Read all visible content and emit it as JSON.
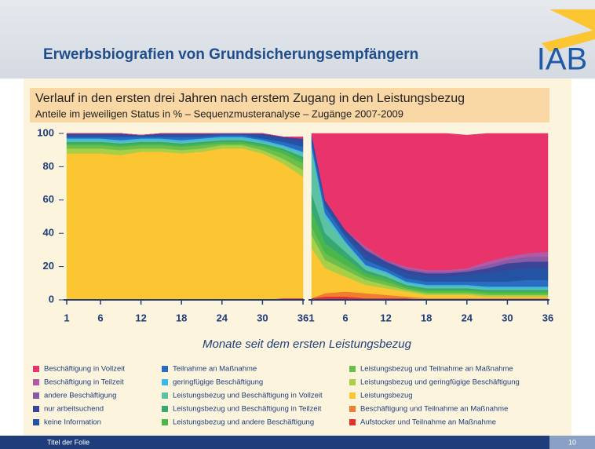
{
  "slide": {
    "title": "Erwerbsbiografien von Grundsicherungsempfängern",
    "logo": "IAB",
    "chart_title": "Verlauf in den ersten drei Jahren nach erstem Zugang in den Leistungsbezug",
    "chart_subtitle": "Anteile im jeweiligen Status in % – Sequenzmusteranalyse – Zugänge 2007-2009",
    "footer": "Titel der Folie",
    "page_number": "10"
  },
  "chart_data": [
    {
      "type": "area",
      "xlabel": "Monate seit dem ersten Leistungsbezug",
      "x": [
        1,
        3,
        6,
        9,
        12,
        15,
        18,
        21,
        24,
        27,
        30,
        33,
        36
      ],
      "xlim": [
        1,
        36
      ],
      "xticks": [
        1,
        6,
        12,
        18,
        24,
        30,
        36
      ],
      "ylim": [
        0,
        100
      ],
      "yticks": [
        0,
        20,
        40,
        60,
        80,
        100
      ],
      "series": [
        {
          "name": "Beschäftigung in Vollzeit",
          "color": "#e8336b",
          "values": [
            0,
            0,
            0,
            0,
            0,
            0,
            0,
            0,
            0,
            0,
            0,
            0,
            1
          ]
        },
        {
          "name": "Beschäftigung in Teilzeit",
          "color": "#b25aa6",
          "values": [
            0,
            0,
            0,
            0,
            0,
            0,
            0,
            0,
            0,
            0,
            0,
            0,
            0
          ]
        },
        {
          "name": "andere Beschäftigung",
          "color": "#8a5aa6",
          "values": [
            0,
            0,
            0,
            0,
            0,
            0,
            0,
            0,
            0,
            0,
            0,
            0,
            0
          ]
        },
        {
          "name": "nur arbeitsuchend",
          "color": "#3b4598",
          "values": [
            1,
            1,
            1,
            1,
            0,
            1,
            1,
            1,
            0,
            0,
            1,
            1,
            2
          ]
        },
        {
          "name": "keine Information",
          "color": "#2453a4",
          "values": [
            1,
            1,
            1,
            1,
            1,
            1,
            1,
            1,
            1,
            1,
            2,
            2,
            3
          ]
        },
        {
          "name": "Teilnahme an Maßnahme",
          "color": "#2a6cc0",
          "values": [
            1,
            1,
            1,
            2,
            1,
            1,
            2,
            1,
            1,
            1,
            1,
            2,
            3
          ]
        },
        {
          "name": "geringfügige Beschäftigung",
          "color": "#3cb9ea",
          "values": [
            1,
            1,
            1,
            1,
            1,
            1,
            1,
            1,
            1,
            1,
            1,
            1,
            1
          ]
        },
        {
          "name": "Leistungsbezug und Beschäftigung in Vollzeit",
          "color": "#5cc2a4",
          "values": [
            1,
            1,
            1,
            1,
            1,
            1,
            1,
            1,
            1,
            1,
            1,
            1,
            2
          ]
        },
        {
          "name": "Leistungsbezug und Beschäftigung in Teilzeit",
          "color": "#38a872",
          "values": [
            1,
            1,
            1,
            1,
            1,
            1,
            1,
            1,
            1,
            1,
            1,
            1,
            2
          ]
        },
        {
          "name": "Leistungsbezug und andere Beschäftigung",
          "color": "#4bb74a",
          "values": [
            1,
            1,
            1,
            1,
            1,
            1,
            1,
            1,
            1,
            1,
            1,
            2,
            2
          ]
        },
        {
          "name": "Leistungsbezug und Teilnahme an Maßnahme",
          "color": "#6cbf4c",
          "values": [
            2,
            2,
            2,
            2,
            2,
            2,
            2,
            2,
            1,
            1,
            2,
            3,
            4
          ]
        },
        {
          "name": "Leistungsbezug und geringfügige Beschäftigung",
          "color": "#a9cf46",
          "values": [
            3,
            3,
            3,
            3,
            2,
            2,
            2,
            2,
            2,
            2,
            2,
            3,
            4
          ]
        },
        {
          "name": "Leistungsbezug",
          "color": "#fbc632",
          "values": [
            88,
            88,
            88,
            87,
            89,
            89,
            88,
            89,
            91,
            91,
            88,
            81,
            73
          ]
        },
        {
          "name": "Beschäftigung und Teilnahme an Maßnahme",
          "color": "#f07d30",
          "values": [
            0,
            0,
            0,
            0,
            0,
            0,
            0,
            0,
            0,
            0,
            0,
            0,
            0
          ]
        },
        {
          "name": "Aufstocker und Teilnahme an Maßnahme",
          "color": "#e8302a",
          "values": [
            0,
            0,
            0,
            0,
            0,
            0,
            0,
            0,
            0,
            0,
            0,
            1,
            1
          ]
        }
      ]
    },
    {
      "type": "area",
      "x": [
        1,
        3,
        6,
        9,
        12,
        15,
        18,
        21,
        24,
        27,
        30,
        33,
        36
      ],
      "xlim": [
        1,
        36
      ],
      "xticks": [
        1,
        6,
        12,
        18,
        24,
        30,
        36
      ],
      "ylim": [
        0,
        100
      ],
      "series": [
        {
          "values": [
            0,
            40,
            58,
            68,
            76,
            80,
            82,
            82,
            80,
            77,
            74,
            72,
            71
          ]
        },
        {
          "values": [
            0,
            0,
            0,
            1,
            0,
            1,
            1,
            1,
            1,
            2,
            2,
            2,
            3
          ]
        },
        {
          "values": [
            0,
            0,
            0,
            1,
            1,
            1,
            1,
            1,
            1,
            2,
            2,
            3,
            3
          ]
        },
        {
          "values": [
            2,
            2,
            2,
            3,
            2,
            2,
            2,
            2,
            2,
            3,
            4,
            4,
            4
          ]
        },
        {
          "values": [
            3,
            2,
            2,
            3,
            2,
            3,
            3,
            3,
            4,
            5,
            7,
            7,
            7
          ]
        },
        {
          "values": [
            3,
            4,
            3,
            3,
            2,
            2,
            2,
            2,
            2,
            3,
            3,
            4,
            4
          ]
        },
        {
          "values": [
            3,
            2,
            1,
            1,
            1,
            1,
            1,
            1,
            1,
            1,
            1,
            1,
            1
          ]
        },
        {
          "values": [
            25,
            10,
            5,
            2,
            2,
            1,
            1,
            1,
            1,
            1,
            1,
            1,
            1
          ]
        },
        {
          "values": [
            10,
            6,
            4,
            2,
            1,
            1,
            1,
            1,
            1,
            1,
            1,
            1,
            1
          ]
        },
        {
          "values": [
            10,
            6,
            4,
            2,
            2,
            1,
            1,
            1,
            1,
            1,
            1,
            1,
            1
          ]
        },
        {
          "values": [
            5,
            4,
            3,
            2,
            2,
            1,
            1,
            1,
            1,
            1,
            1,
            1,
            1
          ]
        },
        {
          "values": [
            8,
            5,
            4,
            3,
            2,
            1,
            1,
            1,
            1,
            1,
            1,
            1,
            1
          ]
        },
        {
          "values": [
            30,
            15,
            9,
            5,
            4,
            3,
            2,
            2,
            2,
            1,
            1,
            1,
            1
          ]
        },
        {
          "values": [
            0,
            2,
            3,
            3,
            2,
            1,
            1,
            1,
            1,
            1,
            1,
            1,
            1
          ]
        },
        {
          "values": [
            1,
            2,
            2,
            1,
            1,
            1,
            0,
            0,
            0,
            0,
            0,
            0,
            0
          ]
        }
      ]
    }
  ]
}
